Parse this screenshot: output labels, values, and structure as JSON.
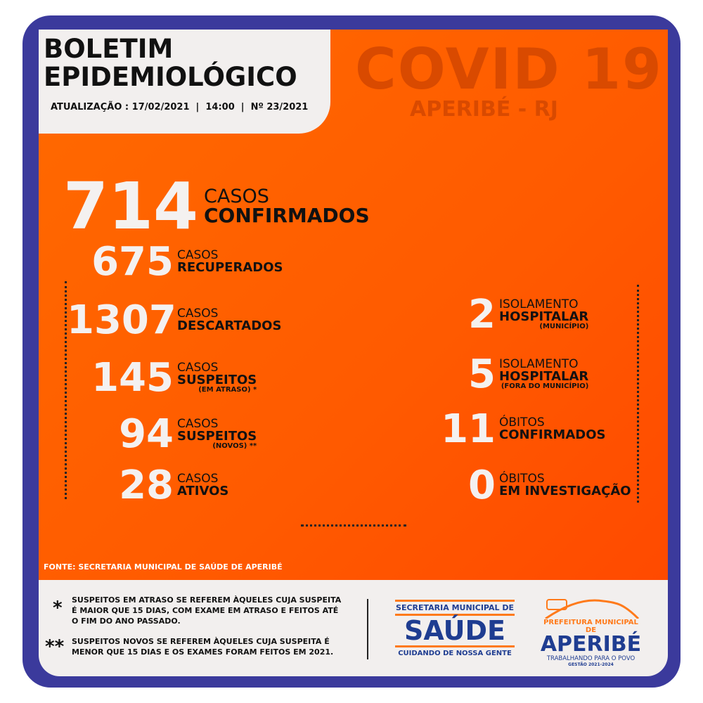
{
  "header": {
    "title_line1": "BOLETIM",
    "title_line2": "EPIDEMIOLÓGICO",
    "update": "ATUALIZAÇÃO : 17/02/2021  |  14:00  |  Nº 23/2021",
    "banner": "COVID 19",
    "location": "APERIBÉ - RJ"
  },
  "left_stats": [
    {
      "value": "714",
      "label1": "CASOS",
      "label2": "CONFIRMADOS",
      "note": ""
    },
    {
      "value": "675",
      "label1": "CASOS",
      "label2": "RECUPERADOS",
      "note": ""
    },
    {
      "value": "1307",
      "label1": "CASOS",
      "label2": "DESCARTADOS",
      "note": ""
    },
    {
      "value": "145",
      "label1": "CASOS",
      "label2": "SUSPEITOS",
      "note": "(EM ATRASO) *"
    },
    {
      "value": "94",
      "label1": "CASOS",
      "label2": "SUSPEITOS",
      "note": "(NOVOS) **"
    },
    {
      "value": "28",
      "label1": "CASOS",
      "label2": "ATIVOS",
      "note": ""
    }
  ],
  "right_stats": [
    {
      "value": "2",
      "label1": "ISOLAMENTO",
      "label2": "HOSPITALAR",
      "note": "(MUNICÍPIO)"
    },
    {
      "value": "5",
      "label1": "ISOLAMENTO",
      "label2": "HOSPITALAR",
      "note": "(FORA DO MUNICÍPIO)"
    },
    {
      "value": "11",
      "label1": "ÓBITOS",
      "label2": "CONFIRMADOS",
      "note": ""
    },
    {
      "value": "0",
      "label1": "ÓBITOS",
      "label2": "EM INVESTIGAÇÃO",
      "note": ""
    }
  ],
  "source": "FONTE: SECRETARIA MUNICIPAL DE SAÚDE DE APERIBÉ",
  "footnotes": [
    {
      "mark": "*",
      "text": "SUSPEITOS EM ATRASO SE REFEREM ÀQUELES CUJA SUSPEITA É MAIOR QUE 15 DIAS, COM EXAME EM ATRASO E FEITOS ATÉ O FIM DO ANO PASSADO."
    },
    {
      "mark": "**",
      "text": "SUSPEITOS NOVOS SE REFEREM ÀQUELES CUJA SUSPEITA É MENOR QUE 15 DIAS E OS EXAMES FORAM FEITOS EM 2021."
    }
  ],
  "logos": {
    "saude_top": "SECRETARIA MUNICIPAL DE",
    "saude_main": "SAÚDE",
    "saude_bottom": "CUIDANDO DE NOSSA GENTE",
    "pref_top": "PREFEITURA MUNICIPAL DE",
    "pref_main": "APERIBÉ",
    "pref_slogan": "TRABALHANDO PARA O POVO",
    "pref_term": "GESTÃO 2021-2024"
  },
  "colors": {
    "frame": "#3b3a9c",
    "orange": "#ff6000",
    "light": "#f2efee",
    "logo_blue": "#1f3d91",
    "logo_orange": "#ff7a1a"
  }
}
